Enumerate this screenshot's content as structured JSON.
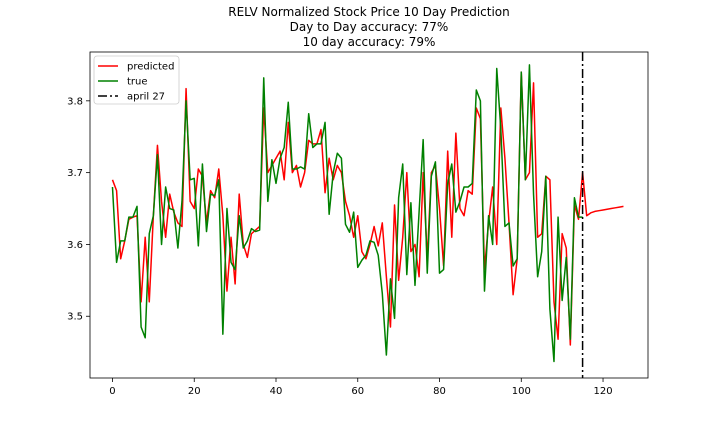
{
  "chart_data": {
    "type": "line",
    "title_lines": [
      "RELV Normalized Stock Price 10 Day Prediction",
      "Day to Day accuracy: 77%",
      "10 day accuracy: 79%"
    ],
    "xlim": [
      -5.5,
      131
    ],
    "ylim": [
      3.414,
      3.868
    ],
    "xticks": [
      0,
      20,
      40,
      60,
      80,
      100,
      120
    ],
    "yticks": [
      3.5,
      3.6,
      3.7,
      3.8
    ],
    "legend_position": "top-left",
    "series": [
      {
        "name": "predicted",
        "color": "#ff0000",
        "x": [
          0,
          1,
          2,
          3,
          4,
          5,
          6,
          7,
          8,
          9,
          10,
          11,
          12,
          13,
          14,
          15,
          16,
          17,
          18,
          19,
          20,
          21,
          22,
          23,
          24,
          25,
          26,
          27,
          28,
          29,
          30,
          31,
          32,
          33,
          34,
          35,
          36,
          37,
          38,
          39,
          40,
          41,
          42,
          43,
          44,
          45,
          46,
          47,
          48,
          49,
          50,
          51,
          52,
          53,
          54,
          55,
          56,
          57,
          58,
          59,
          60,
          61,
          62,
          63,
          64,
          65,
          66,
          67,
          68,
          69,
          70,
          71,
          72,
          73,
          74,
          75,
          76,
          77,
          78,
          79,
          80,
          81,
          82,
          83,
          84,
          85,
          86,
          87,
          88,
          89,
          90,
          91,
          92,
          93,
          94,
          95,
          96,
          97,
          98,
          99,
          100,
          101,
          102,
          103,
          104,
          105,
          106,
          107,
          108,
          109,
          110,
          111,
          112,
          113,
          114,
          115,
          116,
          117,
          118,
          119,
          120,
          121,
          122,
          123,
          124,
          125
        ],
        "values": [
          3.69,
          3.675,
          3.58,
          3.605,
          3.635,
          3.638,
          3.64,
          3.52,
          3.61,
          3.52,
          3.64,
          3.738,
          3.66,
          3.61,
          3.67,
          3.645,
          3.63,
          3.625,
          3.817,
          3.66,
          3.65,
          3.705,
          3.695,
          3.63,
          3.675,
          3.665,
          3.705,
          3.64,
          3.535,
          3.61,
          3.545,
          3.67,
          3.6,
          3.582,
          3.615,
          3.62,
          3.625,
          3.79,
          3.7,
          3.71,
          3.72,
          3.73,
          3.69,
          3.77,
          3.7,
          3.71,
          3.68,
          3.7,
          3.745,
          3.74,
          3.74,
          3.76,
          3.672,
          3.72,
          3.69,
          3.71,
          3.7,
          3.66,
          3.64,
          3.61,
          3.64,
          3.59,
          3.58,
          3.6,
          3.625,
          3.598,
          3.63,
          3.555,
          3.485,
          3.655,
          3.55,
          3.61,
          3.7,
          3.59,
          3.6,
          3.555,
          3.7,
          3.58,
          3.7,
          3.71,
          3.65,
          3.57,
          3.73,
          3.61,
          3.755,
          3.65,
          3.64,
          3.675,
          3.67,
          3.79,
          3.775,
          3.565,
          3.63,
          3.68,
          3.6,
          3.79,
          3.72,
          3.63,
          3.53,
          3.58,
          3.84,
          3.69,
          3.7,
          3.825,
          3.61,
          3.615,
          3.695,
          3.69,
          3.52,
          3.468,
          3.615,
          3.595,
          3.46,
          3.655,
          3.635,
          3.7,
          3.64,
          3.644,
          3.646,
          3.647,
          3.648,
          3.649,
          3.65,
          3.651,
          3.652,
          3.653
        ]
      },
      {
        "name": "true",
        "color": "#008000",
        "x": [
          0,
          1,
          2,
          3,
          4,
          5,
          6,
          7,
          8,
          9,
          10,
          11,
          12,
          13,
          14,
          15,
          16,
          17,
          18,
          19,
          20,
          21,
          22,
          23,
          24,
          25,
          26,
          27,
          28,
          29,
          30,
          31,
          32,
          33,
          34,
          35,
          36,
          37,
          38,
          39,
          40,
          41,
          42,
          43,
          44,
          45,
          46,
          47,
          48,
          49,
          50,
          51,
          52,
          53,
          54,
          55,
          56,
          57,
          58,
          59,
          60,
          61,
          62,
          63,
          64,
          65,
          66,
          67,
          68,
          69,
          70,
          71,
          72,
          73,
          74,
          75,
          76,
          77,
          78,
          79,
          80,
          81,
          82,
          83,
          84,
          85,
          86,
          87,
          88,
          89,
          90,
          91,
          92,
          93,
          94,
          95,
          96,
          97,
          98,
          99,
          100,
          101,
          102,
          103,
          104,
          105,
          106,
          107,
          108,
          109,
          110,
          111,
          112,
          113,
          114,
          115
        ],
        "values": [
          3.68,
          3.575,
          3.605,
          3.605,
          3.638,
          3.638,
          3.653,
          3.485,
          3.47,
          3.615,
          3.64,
          3.725,
          3.6,
          3.68,
          3.65,
          3.648,
          3.595,
          3.66,
          3.8,
          3.69,
          3.692,
          3.598,
          3.712,
          3.618,
          3.67,
          3.668,
          3.69,
          3.475,
          3.65,
          3.575,
          3.565,
          3.64,
          3.595,
          3.605,
          3.622,
          3.618,
          3.62,
          3.832,
          3.66,
          3.718,
          3.685,
          3.72,
          3.735,
          3.798,
          3.705,
          3.705,
          3.708,
          3.705,
          3.782,
          3.735,
          3.74,
          3.74,
          3.77,
          3.642,
          3.7,
          3.727,
          3.72,
          3.628,
          3.617,
          3.645,
          3.568,
          3.578,
          3.585,
          3.605,
          3.603,
          3.585,
          3.532,
          3.446,
          3.552,
          3.497,
          3.665,
          3.712,
          3.558,
          3.658,
          3.543,
          3.645,
          3.746,
          3.56,
          3.695,
          3.715,
          3.56,
          3.565,
          3.685,
          3.712,
          3.645,
          3.66,
          3.68,
          3.68,
          3.685,
          3.815,
          3.8,
          3.535,
          3.64,
          3.6,
          3.845,
          3.76,
          3.625,
          3.63,
          3.57,
          3.58,
          3.84,
          3.69,
          3.85,
          3.67,
          3.555,
          3.59,
          3.695,
          3.51,
          3.437,
          3.638,
          3.522,
          3.582,
          3.468,
          3.665,
          3.638,
          3.638
        ]
      }
    ],
    "vline": {
      "name": "april 27",
      "x": 115,
      "color": "#000000",
      "style": "dashdot"
    }
  }
}
